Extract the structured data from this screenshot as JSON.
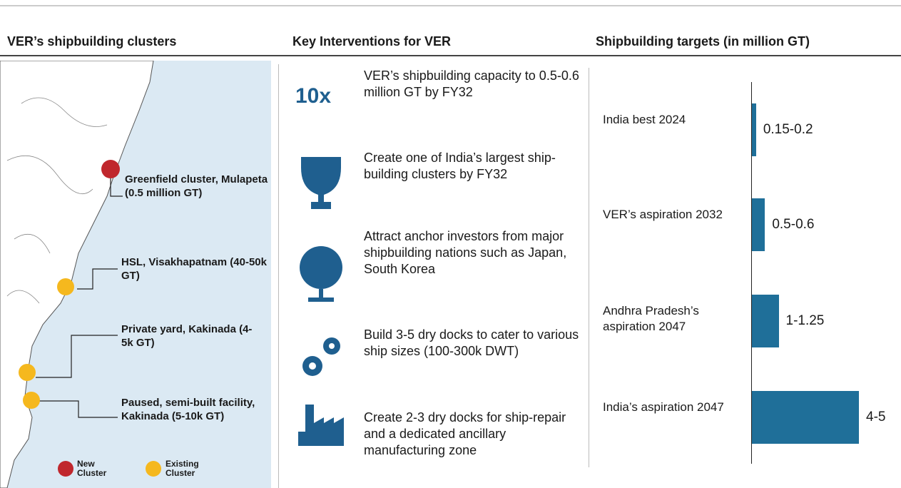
{
  "headers": {
    "clusters": "VER’s shipbuilding clusters",
    "interventions": "Key Interventions for VER",
    "targets": "Shipbuilding targets (in million GT)"
  },
  "map": {
    "clusters": [
      "Greenfield cluster, Mulapeta (0.5 million GT)",
      "HSL, Visakhapatnam (40-50k GT)",
      "Private yard, Kakinada (4-5k GT)",
      "Paused, semi-built facility, Kakinada (5-10k GT)"
    ],
    "legend": [
      "New Cluster",
      "Existing Cluster"
    ]
  },
  "interventions": {
    "highlight": "10x",
    "items": [
      "VER’s shipbuilding capacity to 0.5-0.6 million GT by FY32",
      "Create one of India’s largest ship-building clusters by FY32",
      "Attract anchor investors from major shipbuilding nations such as Japan, South Korea",
      "Build 3-5 dry docks to cater to various ship sizes (100-300k DWT)",
      "Create 2-3 dry docks for ship-repair and a dedicated ancillary manufacturing zone"
    ]
  },
  "chart_data": {
    "type": "bar",
    "orientation": "horizontal",
    "categories": [
      "India best 2024",
      "VER’s aspiration 2032",
      "Andhra Pradesh’s aspiration 2047",
      "India’s aspiration 2047"
    ],
    "values": [
      0.175,
      0.55,
      1.125,
      4.5
    ],
    "value_labels": [
      "0.15-0.2",
      "0.5-0.6",
      "1-1.25",
      "4-5"
    ],
    "color": "#1f6f99"
  }
}
